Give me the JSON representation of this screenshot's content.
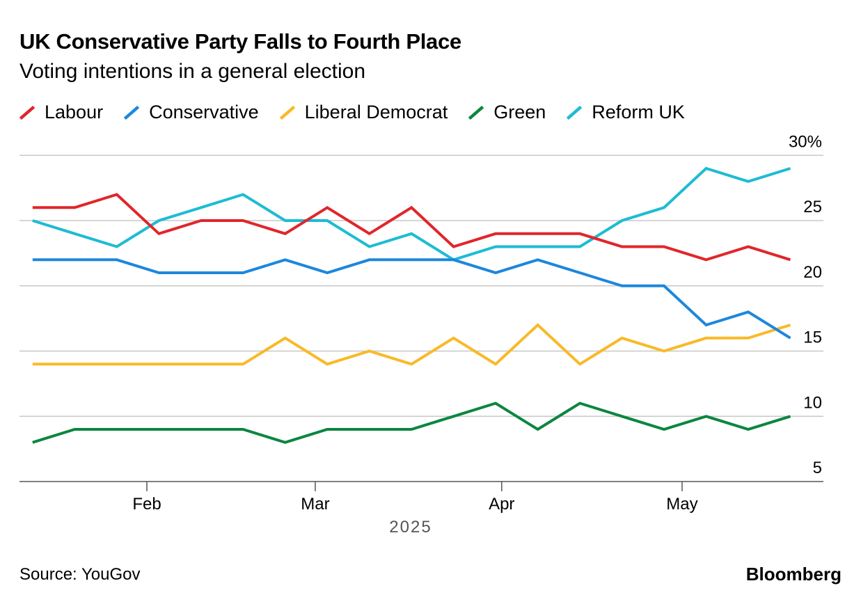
{
  "title": "UK Conservative Party Falls to Fourth Place",
  "subtitle": "Voting intentions in a general election",
  "source": "Source: YouGov",
  "brand": "Bloomberg",
  "chart_data": {
    "type": "line",
    "title": "UK Conservative Party Falls to Fourth Place",
    "subtitle": "Voting intentions in a general election",
    "xlabel": "2025",
    "ylabel": "",
    "ylim": [
      5,
      30
    ],
    "yticks": [
      5,
      10,
      15,
      20,
      25,
      30
    ],
    "ytick_labels": [
      "5",
      "10",
      "15",
      "20",
      "25",
      "30%"
    ],
    "xticks": [
      {
        "date": "2025-02-01",
        "label": "Feb"
      },
      {
        "date": "2025-03-01",
        "label": "Mar"
      },
      {
        "date": "2025-04-01",
        "label": "Apr"
      },
      {
        "date": "2025-05-01",
        "label": "May"
      }
    ],
    "grid": true,
    "legend": "top-left",
    "x": [
      "2025-01-13",
      "2025-01-20",
      "2025-01-27",
      "2025-02-03",
      "2025-02-10",
      "2025-02-17",
      "2025-02-24",
      "2025-03-03",
      "2025-03-10",
      "2025-03-17",
      "2025-03-24",
      "2025-03-31",
      "2025-04-07",
      "2025-04-14",
      "2025-04-21",
      "2025-04-28",
      "2025-05-05",
      "2025-05-12",
      "2025-05-19"
    ],
    "series": [
      {
        "name": "Labour",
        "color": "#e0262b",
        "values": [
          26,
          26,
          27,
          24,
          25,
          25,
          24,
          26,
          24,
          26,
          23,
          24,
          24,
          24,
          23,
          23,
          22,
          23,
          22
        ]
      },
      {
        "name": "Conservative",
        "color": "#1d87dc",
        "values": [
          22,
          22,
          22,
          21,
          21,
          21,
          22,
          21,
          22,
          22,
          22,
          21,
          22,
          21,
          20,
          20,
          17,
          18,
          16
        ]
      },
      {
        "name": "Liberal Democrat",
        "color": "#f9b928",
        "values": [
          14,
          14,
          14,
          14,
          14,
          14,
          16,
          14,
          15,
          14,
          16,
          14,
          17,
          14,
          16,
          15,
          16,
          16,
          17
        ]
      },
      {
        "name": "Green",
        "color": "#0c8640",
        "values": [
          8,
          9,
          9,
          9,
          9,
          9,
          8,
          9,
          9,
          9,
          10,
          11,
          9,
          11,
          10,
          9,
          10,
          9,
          10
        ]
      },
      {
        "name": "Reform UK",
        "color": "#1dbcd3",
        "values": [
          25,
          24,
          23,
          25,
          26,
          27,
          25,
          25,
          23,
          24,
          22,
          23,
          23,
          23,
          25,
          26,
          29,
          28,
          29
        ]
      }
    ]
  }
}
